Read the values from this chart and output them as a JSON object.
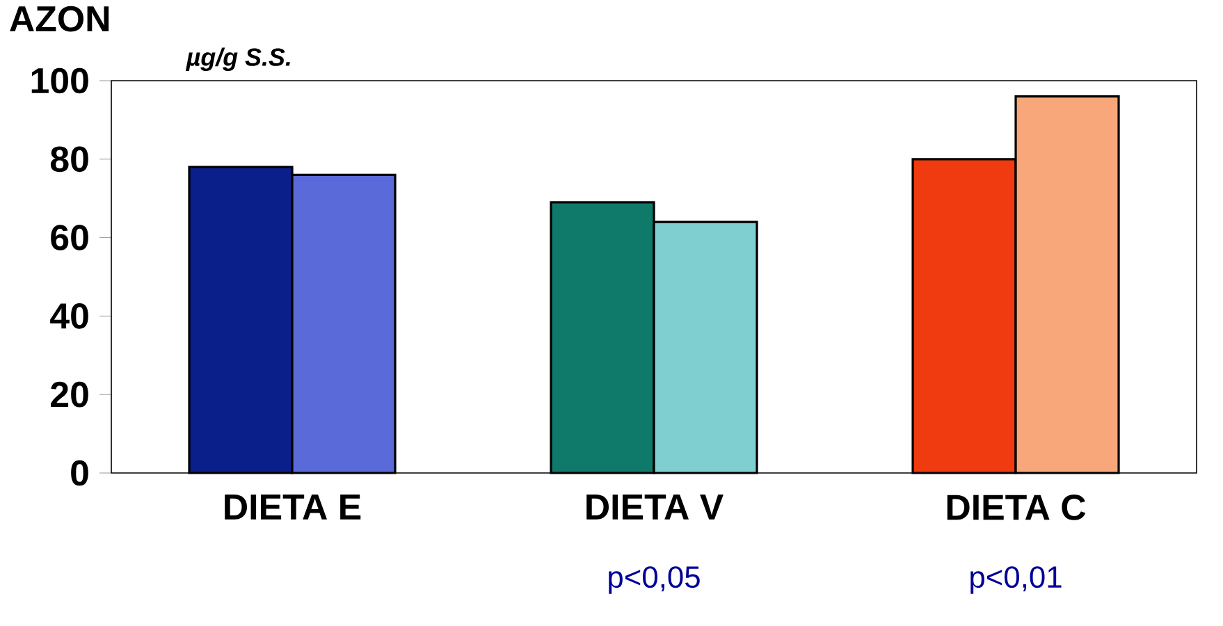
{
  "chart_data": {
    "type": "bar",
    "title": "AZON",
    "ylabel": "µg/g S.S.",
    "categories": [
      "DIETA E",
      "DIETA V",
      "DIETA C"
    ],
    "series": [
      {
        "colors": [
          "#0a1f8a",
          "#0f7a6a",
          "#f03a10"
        ],
        "values": [
          78,
          69,
          80
        ]
      },
      {
        "colors": [
          "#5a6ad8",
          "#7fcfd0",
          "#f7a77a"
        ],
        "values": [
          76,
          64,
          96
        ]
      }
    ],
    "ylim": [
      0,
      100
    ],
    "yticks": [
      0,
      20,
      40,
      60,
      80,
      100
    ],
    "grid": false,
    "annotations": [
      "p<0,05",
      "p<0,01"
    ]
  }
}
